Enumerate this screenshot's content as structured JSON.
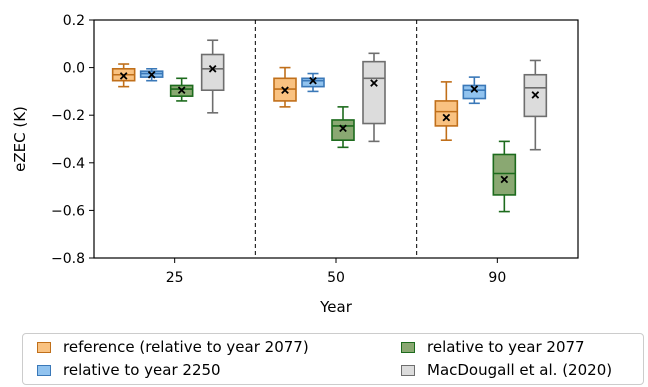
{
  "chart_data": {
    "type": "box",
    "xlabel": "Year",
    "ylabel": "eZEC (K)",
    "ylim": [
      -0.8,
      0.2
    ],
    "yticks": [
      0.2,
      0.0,
      -0.2,
      -0.4,
      -0.6,
      -0.8
    ],
    "ytick_labels": [
      "0.2",
      "0.0",
      "−0.2",
      "−0.4",
      "−0.6",
      "−0.8"
    ],
    "categories": [
      "25",
      "50",
      "90"
    ],
    "series": [
      {
        "name": "reference (relative to year 2077)",
        "edge_color": "#c06f1a",
        "fill_color": "#f9c281",
        "boxes": [
          {
            "whislo": -0.08,
            "q1": -0.055,
            "med": -0.03,
            "q3": -0.005,
            "whishi": 0.015,
            "mean": -0.035
          },
          {
            "whislo": -0.165,
            "q1": -0.14,
            "med": -0.09,
            "q3": -0.045,
            "whishi": 0.0,
            "mean": -0.095
          },
          {
            "whislo": -0.305,
            "q1": -0.245,
            "med": -0.185,
            "q3": -0.14,
            "whishi": -0.06,
            "mean": -0.21
          }
        ]
      },
      {
        "name": "relative to year 2250",
        "edge_color": "#3a78b8",
        "fill_color": "#91c3ef",
        "boxes": [
          {
            "whislo": -0.055,
            "q1": -0.04,
            "med": -0.025,
            "q3": -0.015,
            "whishi": -0.005,
            "mean": -0.03
          },
          {
            "whislo": -0.1,
            "q1": -0.08,
            "med": -0.055,
            "q3": -0.045,
            "whishi": -0.025,
            "mean": -0.055
          },
          {
            "whislo": -0.15,
            "q1": -0.13,
            "med": -0.095,
            "q3": -0.075,
            "whishi": -0.04,
            "mean": -0.09
          }
        ]
      },
      {
        "name": "relative to year 2077",
        "edge_color": "#1d6b1d",
        "fill_color": "#8aa872",
        "boxes": [
          {
            "whislo": -0.14,
            "q1": -0.12,
            "med": -0.09,
            "q3": -0.075,
            "whishi": -0.045,
            "mean": -0.095
          },
          {
            "whislo": -0.335,
            "q1": -0.305,
            "med": -0.245,
            "q3": -0.22,
            "whishi": -0.165,
            "mean": -0.255
          },
          {
            "whislo": -0.605,
            "q1": -0.535,
            "med": -0.445,
            "q3": -0.365,
            "whishi": -0.31,
            "mean": -0.47
          }
        ]
      },
      {
        "name": "MacDougall et al. (2020)",
        "edge_color": "#6e6e6e",
        "fill_color": "#dcdcdc",
        "boxes": [
          {
            "whislo": -0.19,
            "q1": -0.095,
            "med": -0.005,
            "q3": 0.055,
            "whishi": 0.115,
            "mean": -0.005
          },
          {
            "whislo": -0.31,
            "q1": -0.235,
            "med": -0.045,
            "q3": 0.025,
            "whishi": 0.06,
            "mean": -0.065
          },
          {
            "whislo": -0.345,
            "q1": -0.205,
            "med": -0.085,
            "q3": -0.03,
            "whishi": 0.03,
            "mean": -0.115
          }
        ]
      }
    ],
    "separators_between_groups": true,
    "grid": false,
    "legend_position": "bottom"
  },
  "legend": {
    "items": [
      {
        "label": "reference (relative to year 2077)"
      },
      {
        "label": "relative to year 2250"
      },
      {
        "label": "relative to year 2077"
      },
      {
        "label": "MacDougall et al. (2020)"
      }
    ]
  }
}
